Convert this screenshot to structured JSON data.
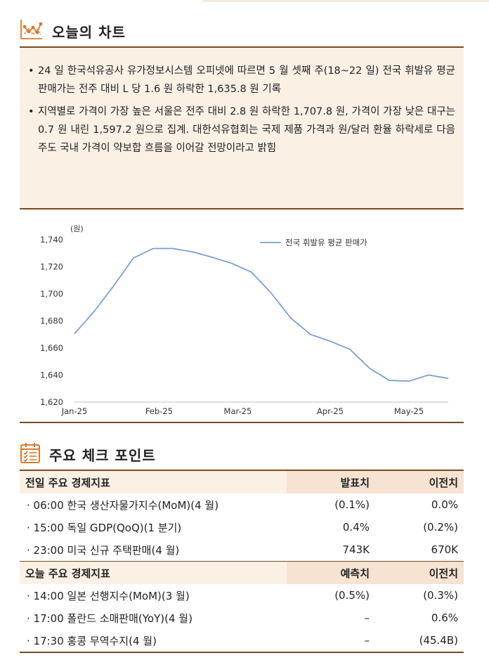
{
  "section1": {
    "title": "오늘의 차트",
    "icon": "chart-line-icon"
  },
  "summary": {
    "bullets": [
      "24 일 한국석유공사 유가정보시스템 오피넷에 따르면 5 월 셋째 주(18~22 일) 전국 휘발유 평균 판매가는 전주 대비 L 당 1.6 원 하락한 1,635.8 원 기록",
      "지역별로 가격이 가장 높은 서울은 전주 대비 2.8 원 하락한 1,707.8 원, 가격이 가장 낮은 대구는 0.7 원 내린 1,597.2 원으로 집계. 대한석유협회는 국제 제품 가격과 원/달러 환율 하락세로 다음 주도 국내 가격이 약보합 흐름을 이어갈 전망이라고 밝힘"
    ],
    "bullet_mark": "•"
  },
  "chart_data": {
    "type": "line",
    "unit_label": "(원)",
    "x_ticks": [
      "Jan-25",
      "Feb-25",
      "Mar-25",
      "Apr-25",
      "May-25"
    ],
    "x_tick_positions": [
      0,
      4.3,
      8.3,
      13.0,
      17.0
    ],
    "ylim": [
      1620,
      1740
    ],
    "y_ticks": [
      "1,740",
      "1,720",
      "1,700",
      "1,680",
      "1,660",
      "1,640",
      "1,620"
    ],
    "y_tick_values": [
      1740,
      1720,
      1700,
      1680,
      1660,
      1640,
      1620
    ],
    "legend_position": "top-right",
    "series": [
      {
        "name": "전국 휘발유 평균 판매가",
        "color": "#7b9fd1",
        "x": [
          0,
          1,
          2,
          3,
          4,
          5,
          6,
          7,
          8,
          9,
          10,
          11,
          12,
          13,
          14,
          15,
          16,
          17,
          18,
          19
        ],
        "values": [
          1670.5,
          1687,
          1706,
          1726.5,
          1733.5,
          1733.5,
          1731,
          1727,
          1722.5,
          1716,
          1700.5,
          1682,
          1670,
          1665,
          1659,
          1645,
          1636,
          1635.5,
          1640,
          1637.5
        ]
      }
    ]
  },
  "section2": {
    "title": "주요 체크 포인트",
    "icon": "checklist-calendar-icon"
  },
  "table1": {
    "headers": [
      "전일 주요 경제지표",
      "발표치",
      "이전치"
    ],
    "rows": [
      {
        "label": "· 06:00 한국 생산자물가지수(MoM)(4 월)",
        "actual": "(0.1%)",
        "previous": "0.0%"
      },
      {
        "label": "· 15:00 독일 GDP(QoQ)(1 분기)",
        "actual": "0.4%",
        "previous": "(0.2%)"
      },
      {
        "label": "· 23:00 미국 신규 주택판매(4 월)",
        "actual": "743K",
        "previous": "670K"
      }
    ]
  },
  "table2": {
    "headers": [
      "오늘 주요 경제지표",
      "예측치",
      "이전치"
    ],
    "rows": [
      {
        "label": "· 14:00 일본 선행지수(MoM)(3 월)",
        "forecast": "(0.5%)",
        "previous": "(0.3%)"
      },
      {
        "label": "· 17:00 폴란드 소매판매(YoY)(4 월)",
        "forecast": "–",
        "previous": "0.6%"
      },
      {
        "label": "· 17:30 홍콩 무역수지(4 월)",
        "forecast": "–",
        "previous": "(45.4B)"
      }
    ]
  },
  "colors": {
    "accent": "#7a4a22",
    "icon_orange": "#d97a2b",
    "band": "#fbf0e4"
  }
}
